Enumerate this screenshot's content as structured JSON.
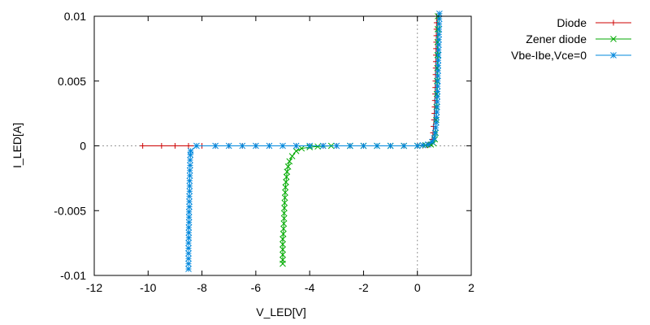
{
  "chart_data": {
    "type": "line",
    "title": "",
    "xlabel": "V_LED[V]",
    "ylabel": "I_LED[A]",
    "xlim": [
      -12,
      2
    ],
    "ylim": [
      -0.01,
      0.01
    ],
    "x_ticks": [
      -12,
      -10,
      -8,
      -6,
      -4,
      -2,
      0,
      2
    ],
    "x_tick_labels": [
      "-12",
      "-10",
      "-8",
      "-6",
      "-4",
      "-2",
      "0",
      "2"
    ],
    "y_ticks": [
      -0.01,
      -0.005,
      0,
      0.005,
      0.01
    ],
    "y_tick_labels": [
      "-0.01",
      "-0.005",
      "0",
      "0.005",
      "0.01"
    ],
    "zero_lines": true,
    "grid": false,
    "legend_position": "top-right-outside",
    "series": [
      {
        "name": "Diode",
        "color": "#cc0000",
        "marker": "plus",
        "points": [
          [
            -10.2,
            0
          ],
          [
            -9.5,
            0
          ],
          [
            -9.0,
            0
          ],
          [
            -8.5,
            0
          ],
          [
            -8.0,
            0
          ],
          [
            -7.5,
            0
          ],
          [
            -7.0,
            0
          ],
          [
            -6.5,
            0
          ],
          [
            -6.0,
            0
          ],
          [
            -5.5,
            0
          ],
          [
            -5.0,
            0
          ],
          [
            -4.5,
            0
          ],
          [
            -4.0,
            0
          ],
          [
            -3.5,
            0
          ],
          [
            -3.0,
            0
          ],
          [
            -2.5,
            0
          ],
          [
            -2.0,
            0
          ],
          [
            -1.5,
            0
          ],
          [
            -1.0,
            0
          ],
          [
            -0.5,
            0
          ],
          [
            0.0,
            0
          ],
          [
            0.2,
            2e-05
          ],
          [
            0.35,
            5e-05
          ],
          [
            0.45,
            0.0001
          ],
          [
            0.5,
            0.0002
          ],
          [
            0.55,
            0.0005
          ],
          [
            0.58,
            0.001
          ],
          [
            0.6,
            0.0015
          ],
          [
            0.62,
            0.002
          ],
          [
            0.63,
            0.0025
          ],
          [
            0.64,
            0.003
          ],
          [
            0.65,
            0.0035
          ],
          [
            0.66,
            0.004
          ],
          [
            0.665,
            0.0045
          ],
          [
            0.67,
            0.005
          ],
          [
            0.675,
            0.0055
          ],
          [
            0.68,
            0.006
          ],
          [
            0.685,
            0.0065
          ],
          [
            0.69,
            0.007
          ],
          [
            0.695,
            0.0075
          ],
          [
            0.7,
            0.008
          ],
          [
            0.705,
            0.0085
          ],
          [
            0.71,
            0.009
          ],
          [
            0.715,
            0.0095
          ],
          [
            0.72,
            0.01
          ]
        ]
      },
      {
        "name": "Zener diode",
        "color": "#00aa00",
        "marker": "cross",
        "points": [
          [
            -5.0,
            -0.0091
          ],
          [
            -5.0,
            -0.0088
          ],
          [
            -5.0,
            -0.0084
          ],
          [
            -5.0,
            -0.008
          ],
          [
            -5.0,
            -0.0076
          ],
          [
            -5.0,
            -0.0072
          ],
          [
            -4.98,
            -0.0068
          ],
          [
            -4.97,
            -0.0064
          ],
          [
            -4.96,
            -0.006
          ],
          [
            -4.95,
            -0.0056
          ],
          [
            -4.95,
            -0.0052
          ],
          [
            -4.94,
            -0.0048
          ],
          [
            -4.93,
            -0.0044
          ],
          [
            -4.92,
            -0.004
          ],
          [
            -4.91,
            -0.0036
          ],
          [
            -4.9,
            -0.0032
          ],
          [
            -4.88,
            -0.0028
          ],
          [
            -4.86,
            -0.0024
          ],
          [
            -4.84,
            -0.002
          ],
          [
            -4.8,
            -0.0016
          ],
          [
            -4.75,
            -0.0012
          ],
          [
            -4.65,
            -0.0008
          ],
          [
            -4.5,
            -0.0004
          ],
          [
            -4.3,
            -0.0002
          ],
          [
            -4.0,
            -0.0001
          ],
          [
            -3.7,
            -5e-05
          ],
          [
            -3.2,
            0
          ],
          [
            -2.5,
            0
          ],
          [
            -2.0,
            0
          ],
          [
            -1.5,
            0
          ],
          [
            -1.0,
            0
          ],
          [
            -0.5,
            0
          ],
          [
            0.0,
            0
          ],
          [
            0.3,
            5e-05
          ],
          [
            0.5,
            0.0001
          ],
          [
            0.6,
            0.0002
          ],
          [
            0.65,
            0.0005
          ],
          [
            0.68,
            0.001
          ],
          [
            0.7,
            0.002
          ],
          [
            0.71,
            0.003
          ],
          [
            0.72,
            0.004
          ],
          [
            0.73,
            0.005
          ],
          [
            0.74,
            0.006
          ],
          [
            0.745,
            0.007
          ],
          [
            0.75,
            0.008
          ],
          [
            0.755,
            0.009
          ],
          [
            0.76,
            0.01
          ]
        ]
      },
      {
        "name": "Vbe-Ibe,Vce=0",
        "color": "#0088dd",
        "marker": "star",
        "points": [
          [
            -8.5,
            -0.0095
          ],
          [
            -8.5,
            -0.0091
          ],
          [
            -8.5,
            -0.0087
          ],
          [
            -8.5,
            -0.0083
          ],
          [
            -8.5,
            -0.0079
          ],
          [
            -8.5,
            -0.0075
          ],
          [
            -8.49,
            -0.0071
          ],
          [
            -8.49,
            -0.0067
          ],
          [
            -8.49,
            -0.0063
          ],
          [
            -8.48,
            -0.0059
          ],
          [
            -8.48,
            -0.0055
          ],
          [
            -8.48,
            -0.0051
          ],
          [
            -8.47,
            -0.0047
          ],
          [
            -8.47,
            -0.0043
          ],
          [
            -8.47,
            -0.0039
          ],
          [
            -8.46,
            -0.0035
          ],
          [
            -8.46,
            -0.0031
          ],
          [
            -8.46,
            -0.0027
          ],
          [
            -8.45,
            -0.0023
          ],
          [
            -8.45,
            -0.0019
          ],
          [
            -8.44,
            -0.0015
          ],
          [
            -8.44,
            -0.0011
          ],
          [
            -8.43,
            -0.0007
          ],
          [
            -8.42,
            -0.0004
          ],
          [
            -8.2,
            0
          ],
          [
            -7.5,
            0
          ],
          [
            -7.0,
            0
          ],
          [
            -6.5,
            0
          ],
          [
            -6.0,
            0
          ],
          [
            -5.5,
            0
          ],
          [
            -5.0,
            0
          ],
          [
            -4.5,
            0
          ],
          [
            -4.0,
            0
          ],
          [
            -3.5,
            0
          ],
          [
            -3.0,
            0
          ],
          [
            -2.5,
            0
          ],
          [
            -2.0,
            0
          ],
          [
            -1.5,
            0
          ],
          [
            -1.0,
            0
          ],
          [
            -0.5,
            0
          ],
          [
            0.0,
            0
          ],
          [
            0.2,
            5e-05
          ],
          [
            0.4,
            0.0001
          ],
          [
            0.55,
            0.0003
          ],
          [
            0.62,
            0.0006
          ],
          [
            0.66,
            0.001
          ],
          [
            0.68,
            0.0014
          ],
          [
            0.7,
            0.0018
          ],
          [
            0.71,
            0.0022
          ],
          [
            0.72,
            0.0026
          ],
          [
            0.73,
            0.003
          ],
          [
            0.735,
            0.0034
          ],
          [
            0.74,
            0.0038
          ],
          [
            0.745,
            0.0042
          ],
          [
            0.75,
            0.0046
          ],
          [
            0.755,
            0.005
          ],
          [
            0.76,
            0.0054
          ],
          [
            0.765,
            0.0058
          ],
          [
            0.77,
            0.0062
          ],
          [
            0.775,
            0.0066
          ],
          [
            0.78,
            0.007
          ],
          [
            0.785,
            0.0074
          ],
          [
            0.79,
            0.0078
          ],
          [
            0.795,
            0.0082
          ],
          [
            0.8,
            0.0086
          ],
          [
            0.805,
            0.009
          ],
          [
            0.81,
            0.0094
          ],
          [
            0.815,
            0.0098
          ],
          [
            0.82,
            0.0102
          ]
        ]
      }
    ]
  }
}
